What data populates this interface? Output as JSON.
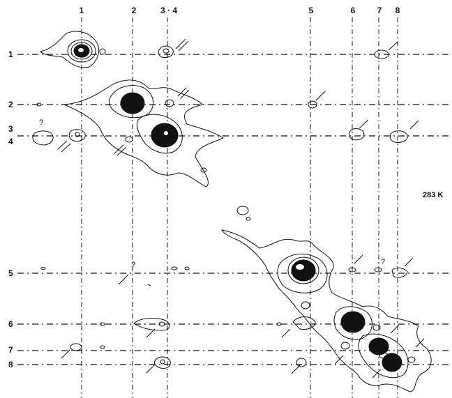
{
  "temperature_label": "283 K",
  "question_mark": "?",
  "top_labels": [
    {
      "text": "1"
    },
    {
      "text": "2"
    },
    {
      "text": "3 · 4"
    },
    {
      "text": "5"
    },
    {
      "text": "6"
    },
    {
      "text": "7"
    },
    {
      "text": "8"
    }
  ],
  "left_labels": [
    {
      "text": "1"
    },
    {
      "text": "2"
    },
    {
      "text": "3"
    },
    {
      "text": "4"
    },
    {
      "text": "5"
    },
    {
      "text": "6"
    },
    {
      "text": "7"
    },
    {
      "text": "8"
    }
  ]
}
